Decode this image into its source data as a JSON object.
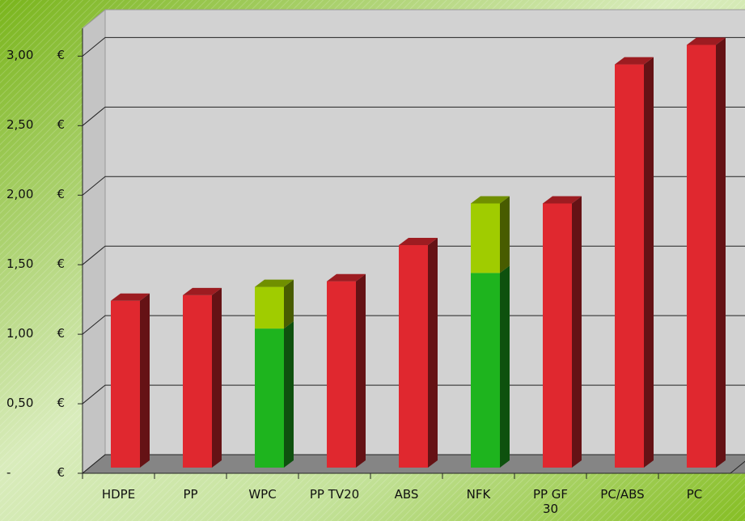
{
  "chart_data": {
    "type": "bar3d",
    "categories": [
      "HDPE",
      "PP",
      "WPC",
      "PP TV20",
      "ABS",
      "NFK",
      "PP GF\n30",
      "PC/ABS",
      "PC"
    ],
    "series": [
      {
        "color": "#e0282f",
        "values": [
          1.2,
          1.24,
          null,
          1.34,
          1.6,
          null,
          1.9,
          2.9,
          3.04
        ]
      },
      {
        "color": "#1eb41e",
        "values": [
          null,
          null,
          1.0,
          null,
          null,
          1.4,
          null,
          null,
          null
        ]
      },
      {
        "color": "#a0cc00",
        "values": [
          null,
          null,
          0.3,
          null,
          null,
          0.5,
          null,
          null,
          null
        ]
      }
    ],
    "stacked": true,
    "ylim": [
      0,
      3.2
    ],
    "yticks": [
      {
        "value": 0,
        "label": "- €"
      },
      {
        "value": 0.5,
        "label": "0,50 €"
      },
      {
        "value": 1,
        "label": "1,00 €"
      },
      {
        "value": 1.5,
        "label": "1,50 €"
      },
      {
        "value": 2,
        "label": "2,00 €"
      },
      {
        "value": 2.5,
        "label": "2,50 €"
      },
      {
        "value": 3,
        "label": "3,00 €"
      }
    ],
    "grid": true
  }
}
